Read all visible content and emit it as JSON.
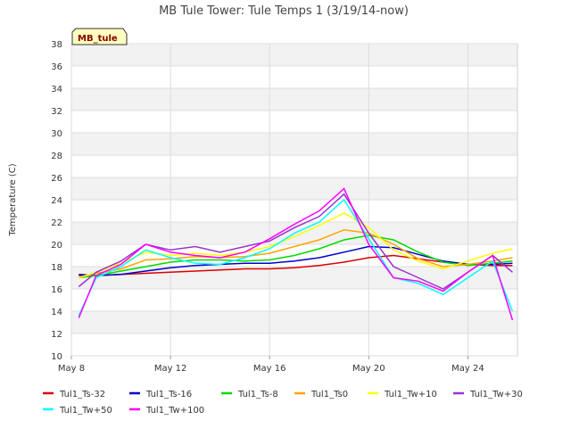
{
  "chart_data": {
    "type": "line",
    "title": "MB Tule Tower: Tule Temps 1 (3/19/14-now)",
    "ylabel": "Temperature (C)",
    "xlabel": "",
    "badge": "MB_tule",
    "ylim": [
      10,
      38
    ],
    "yticks": [
      10,
      12,
      14,
      16,
      18,
      20,
      22,
      24,
      26,
      28,
      30,
      32,
      34,
      36,
      38
    ],
    "xlim": [
      8.0,
      26.0
    ],
    "xticks": [
      {
        "label": "May 8",
        "day": 8
      },
      {
        "label": "May 12",
        "day": 12
      },
      {
        "label": "May 16",
        "day": 16
      },
      {
        "label": "May 20",
        "day": 20
      },
      {
        "label": "May 24",
        "day": 24
      }
    ],
    "grid": true,
    "legend_position": "bottom",
    "series": [
      {
        "name": "Tul1_Ts-32",
        "color": "#dd0000",
        "x": [
          8.3,
          9,
          10,
          11,
          12,
          13,
          14,
          15,
          16,
          17,
          18,
          19,
          20,
          21,
          22,
          23,
          24,
          25,
          25.8
        ],
        "y": [
          17.2,
          17.2,
          17.3,
          17.4,
          17.5,
          17.6,
          17.7,
          17.8,
          17.8,
          17.9,
          18.1,
          18.4,
          18.8,
          19.0,
          18.7,
          18.4,
          18.2,
          18.1,
          18.1
        ]
      },
      {
        "name": "Tul1_Ts-16",
        "color": "#0000cc",
        "x": [
          8.3,
          9,
          10,
          11,
          12,
          13,
          14,
          15,
          16,
          17,
          18,
          19,
          20,
          21,
          22,
          23,
          24,
          25,
          25.8
        ],
        "y": [
          17.3,
          17.2,
          17.3,
          17.6,
          17.9,
          18.1,
          18.2,
          18.3,
          18.3,
          18.5,
          18.8,
          19.3,
          19.8,
          19.7,
          19.1,
          18.5,
          18.2,
          18.2,
          18.3
        ]
      },
      {
        "name": "Tul1_Ts-8",
        "color": "#00dd00",
        "x": [
          8.3,
          9,
          10,
          11,
          12,
          13,
          14,
          15,
          16,
          17,
          18,
          19,
          20,
          21,
          22,
          23,
          24,
          25,
          25.8
        ],
        "y": [
          17.0,
          17.2,
          17.6,
          18.0,
          18.4,
          18.6,
          18.6,
          18.5,
          18.6,
          19.0,
          19.6,
          20.4,
          20.8,
          20.4,
          19.3,
          18.4,
          18.1,
          18.3,
          18.5
        ]
      },
      {
        "name": "Tul1_Ts0",
        "color": "#ffa500",
        "x": [
          8.3,
          9,
          10,
          11,
          12,
          13,
          14,
          15,
          16,
          17,
          18,
          19,
          20,
          21,
          22,
          23,
          24,
          25,
          25.8
        ],
        "y": [
          17.0,
          17.4,
          17.8,
          18.6,
          18.7,
          18.9,
          18.8,
          18.9,
          19.2,
          19.8,
          20.4,
          21.3,
          21.0,
          20.0,
          18.7,
          18.0,
          18.2,
          18.5,
          18.8
        ]
      },
      {
        "name": "Tul1_Tw+10",
        "color": "#ffff00",
        "x": [
          8.3,
          9,
          10,
          11,
          12,
          13,
          14,
          15,
          16,
          17,
          18,
          19,
          20,
          21,
          22,
          23,
          24,
          25,
          25.8
        ],
        "y": [
          17.0,
          17.5,
          18.3,
          19.3,
          19.0,
          19.2,
          19.0,
          19.3,
          19.8,
          20.7,
          21.7,
          22.8,
          21.5,
          19.5,
          18.5,
          17.8,
          18.5,
          19.2,
          19.6
        ]
      },
      {
        "name": "Tul1_Tw+30",
        "color": "#9933cc",
        "x": [
          8.3,
          9,
          10,
          11,
          12,
          13,
          14,
          15,
          16,
          17,
          18,
          19,
          20,
          21,
          22,
          23,
          24,
          25,
          25.8
        ],
        "y": [
          16.2,
          17.5,
          18.5,
          20.0,
          19.5,
          19.8,
          19.3,
          19.8,
          20.3,
          21.5,
          22.5,
          24.5,
          21.0,
          18.0,
          17.0,
          16.0,
          17.5,
          19.0,
          17.5
        ]
      },
      {
        "name": "Tul1_Tw+50",
        "color": "#00ffff",
        "x": [
          8.3,
          9,
          10,
          11,
          12,
          13,
          14,
          15,
          16,
          17,
          18,
          19,
          20,
          21,
          22,
          23,
          24,
          25,
          25.8
        ],
        "y": [
          13.6,
          17.0,
          18.0,
          19.5,
          18.8,
          18.3,
          18.2,
          18.8,
          19.6,
          21.0,
          22.0,
          24.0,
          20.5,
          17.0,
          16.5,
          15.5,
          17.0,
          18.5,
          14.0
        ]
      },
      {
        "name": "Tul1_Tw+100",
        "color": "#ff00ff",
        "x": [
          8.3,
          9,
          10,
          11,
          12,
          13,
          14,
          15,
          16,
          17,
          18,
          19,
          20,
          21,
          22,
          23,
          24,
          25,
          25.8
        ],
        "y": [
          13.4,
          17.2,
          18.2,
          20.0,
          19.3,
          19.0,
          18.8,
          19.3,
          20.5,
          21.8,
          23.0,
          25.0,
          20.0,
          17.0,
          16.7,
          15.8,
          17.5,
          19.0,
          13.2
        ]
      }
    ]
  }
}
